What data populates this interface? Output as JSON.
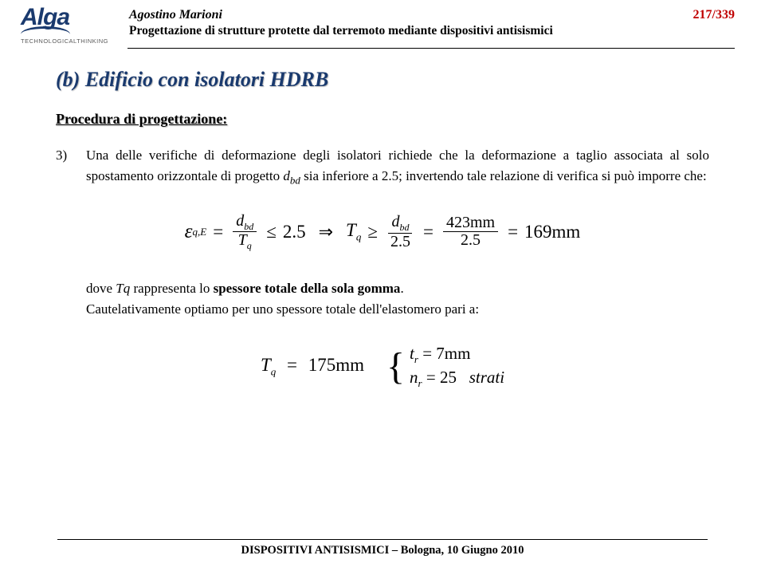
{
  "header": {
    "logo_text": "Alga",
    "tagline": "TECHNOLOGICALTHINKING",
    "author": "Agostino Marioni",
    "subtitle": "Progettazione di strutture protette dal terremoto mediante dispositivi antisismici",
    "pagenum": "217/339"
  },
  "title": "(b) Edificio con isolatori HDRB",
  "section": "Procedura di progettazione:",
  "para": {
    "num": "3)",
    "body_a": "Una delle verifiche di deformazione degli isolatori richiede che la deformazione a taglio associata al solo spostamento orizzontale di progetto ",
    "var1": "d",
    "var1_sub": "bd",
    "body_b": " sia inferiore a 2.5; invertendo tale relazione di verifica si può imporre che:"
  },
  "eq1": {
    "eps": "ε",
    "eps_sub": "q,E",
    "f1_top_a": "d",
    "f1_top_sub": "bd",
    "f1_bot_a": "T",
    "f1_bot_sub": "q",
    "le": "≤",
    "v1": "2.5",
    "arrow": "⇒",
    "T": "T",
    "T_sub": "q",
    "ge": "≥",
    "f2_top_a": "d",
    "f2_top_sub": "bd",
    "f2_bot": "2.5",
    "f3_top": "423mm",
    "f3_bot": "2.5",
    "res": "169mm"
  },
  "para2_a": "dove ",
  "para2_var": "Tq",
  "para2_b": " rappresenta lo ",
  "para2_bold": "spessore totale della sola gomma",
  "para2_c": ".",
  "para2_line2": "Cautelativamente optiamo per uno spessore totale dell'elastomero pari a:",
  "eq2": {
    "lhs_T": "T",
    "lhs_sub": "q",
    "lhs_val": "175mm",
    "r1_t": "t",
    "r1_sub": "r",
    "r1_val": "7mm",
    "r2_n": "n",
    "r2_sub": "r",
    "r2_val": "25",
    "r2_unit": "strati"
  },
  "footer": "DISPOSITIVI ANTISISMICI – Bologna, 10 Giugno 2010",
  "colors": {
    "brand": "#1a3a6e",
    "accent": "#c00000",
    "text": "#000000",
    "bg": "#ffffff"
  }
}
